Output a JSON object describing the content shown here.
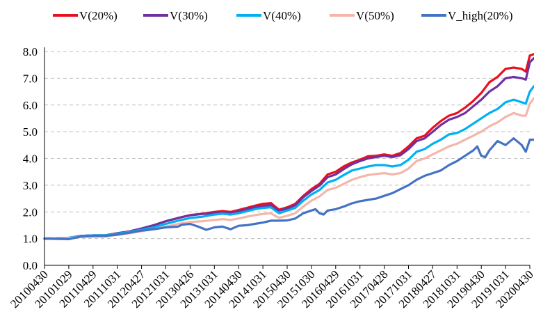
{
  "chart_data": {
    "type": "line",
    "title": "",
    "xlabel": "",
    "ylabel": "",
    "ylim": [
      0,
      8.0
    ],
    "y_ticks": [
      "0.0",
      "1.0",
      "2.0",
      "3.0",
      "4.0",
      "5.0",
      "6.0",
      "7.0",
      "8.0"
    ],
    "grid": "horizontal dashed",
    "legend_position": "top",
    "x_tick_labels": [
      "20100430",
      "20101029",
      "20110429",
      "20111031",
      "20120427",
      "20121031",
      "20130426",
      "20131031",
      "20140430",
      "20141031",
      "20150430",
      "20151030",
      "20160429",
      "20161031",
      "20170428",
      "20171031",
      "20180427",
      "20181031",
      "20190430",
      "20191031",
      "20200430"
    ],
    "x_tick_positions": [
      0,
      6,
      12,
      18,
      24,
      30,
      36,
      42,
      48,
      54,
      60,
      66,
      72,
      78,
      84,
      90,
      96,
      102,
      108,
      114,
      120
    ],
    "x_count": 121,
    "series": [
      {
        "name": "V(20%)",
        "color": "#e8101e",
        "points": [
          [
            0,
            1.0
          ],
          [
            6,
            1.03
          ],
          [
            9,
            1.1
          ],
          [
            12,
            1.12
          ],
          [
            15,
            1.12
          ],
          [
            18,
            1.2
          ],
          [
            21,
            1.27
          ],
          [
            24,
            1.37
          ],
          [
            27,
            1.5
          ],
          [
            30,
            1.65
          ],
          [
            33,
            1.77
          ],
          [
            36,
            1.88
          ],
          [
            39,
            1.93
          ],
          [
            42,
            2.0
          ],
          [
            44,
            2.03
          ],
          [
            46,
            2.0
          ],
          [
            48,
            2.07
          ],
          [
            50,
            2.15
          ],
          [
            52,
            2.23
          ],
          [
            54,
            2.3
          ],
          [
            56,
            2.33
          ],
          [
            57,
            2.2
          ],
          [
            58,
            2.08
          ],
          [
            60,
            2.17
          ],
          [
            62,
            2.3
          ],
          [
            64,
            2.6
          ],
          [
            66,
            2.85
          ],
          [
            68,
            3.05
          ],
          [
            70,
            3.4
          ],
          [
            72,
            3.5
          ],
          [
            74,
            3.7
          ],
          [
            76,
            3.85
          ],
          [
            78,
            3.95
          ],
          [
            80,
            4.08
          ],
          [
            82,
            4.1
          ],
          [
            84,
            4.15
          ],
          [
            86,
            4.1
          ],
          [
            88,
            4.2
          ],
          [
            90,
            4.45
          ],
          [
            92,
            4.75
          ],
          [
            94,
            4.85
          ],
          [
            96,
            5.15
          ],
          [
            98,
            5.4
          ],
          [
            100,
            5.6
          ],
          [
            102,
            5.7
          ],
          [
            104,
            5.9
          ],
          [
            106,
            6.15
          ],
          [
            108,
            6.45
          ],
          [
            110,
            6.85
          ],
          [
            112,
            7.05
          ],
          [
            114,
            7.35
          ],
          [
            116,
            7.4
          ],
          [
            118,
            7.35
          ],
          [
            119,
            7.25
          ],
          [
            120,
            7.85
          ],
          [
            121,
            7.9
          ]
        ]
      },
      {
        "name": "V(30%)",
        "color": "#7030a0",
        "points": [
          [
            0,
            1.0
          ],
          [
            6,
            1.03
          ],
          [
            9,
            1.1
          ],
          [
            12,
            1.12
          ],
          [
            15,
            1.12
          ],
          [
            18,
            1.2
          ],
          [
            21,
            1.27
          ],
          [
            24,
            1.38
          ],
          [
            27,
            1.5
          ],
          [
            30,
            1.65
          ],
          [
            33,
            1.77
          ],
          [
            36,
            1.87
          ],
          [
            39,
            1.92
          ],
          [
            42,
            1.95
          ],
          [
            44,
            1.98
          ],
          [
            46,
            1.96
          ],
          [
            48,
            2.02
          ],
          [
            50,
            2.1
          ],
          [
            52,
            2.17
          ],
          [
            54,
            2.22
          ],
          [
            56,
            2.25
          ],
          [
            57,
            2.13
          ],
          [
            58,
            2.05
          ],
          [
            60,
            2.12
          ],
          [
            62,
            2.25
          ],
          [
            64,
            2.55
          ],
          [
            66,
            2.78
          ],
          [
            68,
            2.98
          ],
          [
            70,
            3.3
          ],
          [
            72,
            3.4
          ],
          [
            74,
            3.6
          ],
          [
            76,
            3.78
          ],
          [
            78,
            3.9
          ],
          [
            80,
            4.0
          ],
          [
            82,
            4.05
          ],
          [
            84,
            4.1
          ],
          [
            86,
            4.05
          ],
          [
            88,
            4.12
          ],
          [
            90,
            4.35
          ],
          [
            92,
            4.65
          ],
          [
            94,
            4.75
          ],
          [
            96,
            5.0
          ],
          [
            98,
            5.25
          ],
          [
            100,
            5.45
          ],
          [
            102,
            5.55
          ],
          [
            104,
            5.7
          ],
          [
            106,
            5.95
          ],
          [
            108,
            6.2
          ],
          [
            110,
            6.5
          ],
          [
            112,
            6.7
          ],
          [
            114,
            7.0
          ],
          [
            116,
            7.05
          ],
          [
            118,
            7.0
          ],
          [
            119,
            6.95
          ],
          [
            120,
            7.6
          ],
          [
            121,
            7.75
          ]
        ]
      },
      {
        "name": "V(40%)",
        "color": "#00b0f0",
        "points": [
          [
            0,
            1.0
          ],
          [
            6,
            1.03
          ],
          [
            9,
            1.1
          ],
          [
            12,
            1.12
          ],
          [
            15,
            1.12
          ],
          [
            18,
            1.18
          ],
          [
            21,
            1.25
          ],
          [
            24,
            1.33
          ],
          [
            27,
            1.42
          ],
          [
            30,
            1.55
          ],
          [
            33,
            1.67
          ],
          [
            36,
            1.77
          ],
          [
            39,
            1.82
          ],
          [
            42,
            1.9
          ],
          [
            44,
            1.93
          ],
          [
            46,
            1.9
          ],
          [
            48,
            1.95
          ],
          [
            50,
            2.02
          ],
          [
            52,
            2.1
          ],
          [
            54,
            2.15
          ],
          [
            56,
            2.17
          ],
          [
            57,
            2.05
          ],
          [
            58,
            1.95
          ],
          [
            60,
            2.05
          ],
          [
            62,
            2.15
          ],
          [
            64,
            2.42
          ],
          [
            66,
            2.65
          ],
          [
            68,
            2.82
          ],
          [
            70,
            3.1
          ],
          [
            72,
            3.2
          ],
          [
            74,
            3.38
          ],
          [
            76,
            3.55
          ],
          [
            78,
            3.62
          ],
          [
            80,
            3.7
          ],
          [
            82,
            3.75
          ],
          [
            84,
            3.75
          ],
          [
            86,
            3.7
          ],
          [
            88,
            3.75
          ],
          [
            90,
            3.95
          ],
          [
            92,
            4.25
          ],
          [
            94,
            4.35
          ],
          [
            96,
            4.55
          ],
          [
            98,
            4.7
          ],
          [
            100,
            4.9
          ],
          [
            102,
            4.95
          ],
          [
            104,
            5.1
          ],
          [
            106,
            5.3
          ],
          [
            108,
            5.5
          ],
          [
            110,
            5.7
          ],
          [
            112,
            5.85
          ],
          [
            114,
            6.1
          ],
          [
            116,
            6.2
          ],
          [
            118,
            6.1
          ],
          [
            119,
            6.05
          ],
          [
            120,
            6.5
          ],
          [
            121,
            6.7
          ]
        ]
      },
      {
        "name": "V(50%)",
        "color": "#f4b6aa",
        "points": [
          [
            0,
            1.0
          ],
          [
            6,
            1.02
          ],
          [
            9,
            1.06
          ],
          [
            12,
            1.08
          ],
          [
            15,
            1.08
          ],
          [
            18,
            1.14
          ],
          [
            21,
            1.2
          ],
          [
            24,
            1.28
          ],
          [
            27,
            1.35
          ],
          [
            30,
            1.45
          ],
          [
            33,
            1.55
          ],
          [
            36,
            1.62
          ],
          [
            39,
            1.65
          ],
          [
            42,
            1.7
          ],
          [
            44,
            1.73
          ],
          [
            46,
            1.7
          ],
          [
            48,
            1.75
          ],
          [
            50,
            1.82
          ],
          [
            52,
            1.88
          ],
          [
            54,
            1.92
          ],
          [
            56,
            1.95
          ],
          [
            57,
            1.85
          ],
          [
            58,
            1.78
          ],
          [
            60,
            1.85
          ],
          [
            62,
            1.95
          ],
          [
            64,
            2.2
          ],
          [
            66,
            2.42
          ],
          [
            68,
            2.58
          ],
          [
            70,
            2.82
          ],
          [
            72,
            2.9
          ],
          [
            74,
            3.05
          ],
          [
            76,
            3.2
          ],
          [
            78,
            3.3
          ],
          [
            80,
            3.38
          ],
          [
            82,
            3.42
          ],
          [
            84,
            3.45
          ],
          [
            86,
            3.4
          ],
          [
            88,
            3.45
          ],
          [
            90,
            3.62
          ],
          [
            92,
            3.9
          ],
          [
            94,
            4.0
          ],
          [
            96,
            4.15
          ],
          [
            98,
            4.3
          ],
          [
            100,
            4.45
          ],
          [
            102,
            4.55
          ],
          [
            104,
            4.7
          ],
          [
            106,
            4.85
          ],
          [
            108,
            5.0
          ],
          [
            110,
            5.2
          ],
          [
            112,
            5.35
          ],
          [
            114,
            5.55
          ],
          [
            116,
            5.7
          ],
          [
            118,
            5.6
          ],
          [
            119,
            5.6
          ],
          [
            120,
            6.05
          ],
          [
            121,
            6.25
          ]
        ]
      },
      {
        "name": "V_high(20%)",
        "color": "#4472c4",
        "points": [
          [
            0,
            1.0
          ],
          [
            6,
            0.98
          ],
          [
            9,
            1.08
          ],
          [
            12,
            1.1
          ],
          [
            15,
            1.1
          ],
          [
            18,
            1.15
          ],
          [
            21,
            1.22
          ],
          [
            24,
            1.3
          ],
          [
            27,
            1.35
          ],
          [
            30,
            1.42
          ],
          [
            33,
            1.45
          ],
          [
            34,
            1.52
          ],
          [
            36,
            1.55
          ],
          [
            38,
            1.45
          ],
          [
            40,
            1.33
          ],
          [
            42,
            1.42
          ],
          [
            44,
            1.45
          ],
          [
            46,
            1.35
          ],
          [
            48,
            1.48
          ],
          [
            50,
            1.5
          ],
          [
            52,
            1.55
          ],
          [
            54,
            1.6
          ],
          [
            56,
            1.67
          ],
          [
            58,
            1.67
          ],
          [
            60,
            1.68
          ],
          [
            62,
            1.75
          ],
          [
            64,
            1.95
          ],
          [
            66,
            2.05
          ],
          [
            67,
            2.1
          ],
          [
            68,
            1.95
          ],
          [
            69,
            1.9
          ],
          [
            70,
            2.05
          ],
          [
            72,
            2.1
          ],
          [
            74,
            2.2
          ],
          [
            76,
            2.32
          ],
          [
            78,
            2.4
          ],
          [
            80,
            2.45
          ],
          [
            82,
            2.5
          ],
          [
            84,
            2.6
          ],
          [
            86,
            2.7
          ],
          [
            88,
            2.85
          ],
          [
            90,
            3.0
          ],
          [
            92,
            3.2
          ],
          [
            94,
            3.35
          ],
          [
            96,
            3.45
          ],
          [
            98,
            3.55
          ],
          [
            100,
            3.75
          ],
          [
            102,
            3.9
          ],
          [
            104,
            4.1
          ],
          [
            106,
            4.3
          ],
          [
            107,
            4.45
          ],
          [
            108,
            4.1
          ],
          [
            109,
            4.05
          ],
          [
            110,
            4.3
          ],
          [
            112,
            4.65
          ],
          [
            114,
            4.5
          ],
          [
            116,
            4.75
          ],
          [
            118,
            4.5
          ],
          [
            119,
            4.25
          ],
          [
            120,
            4.7
          ],
          [
            121,
            4.7
          ]
        ]
      }
    ]
  }
}
